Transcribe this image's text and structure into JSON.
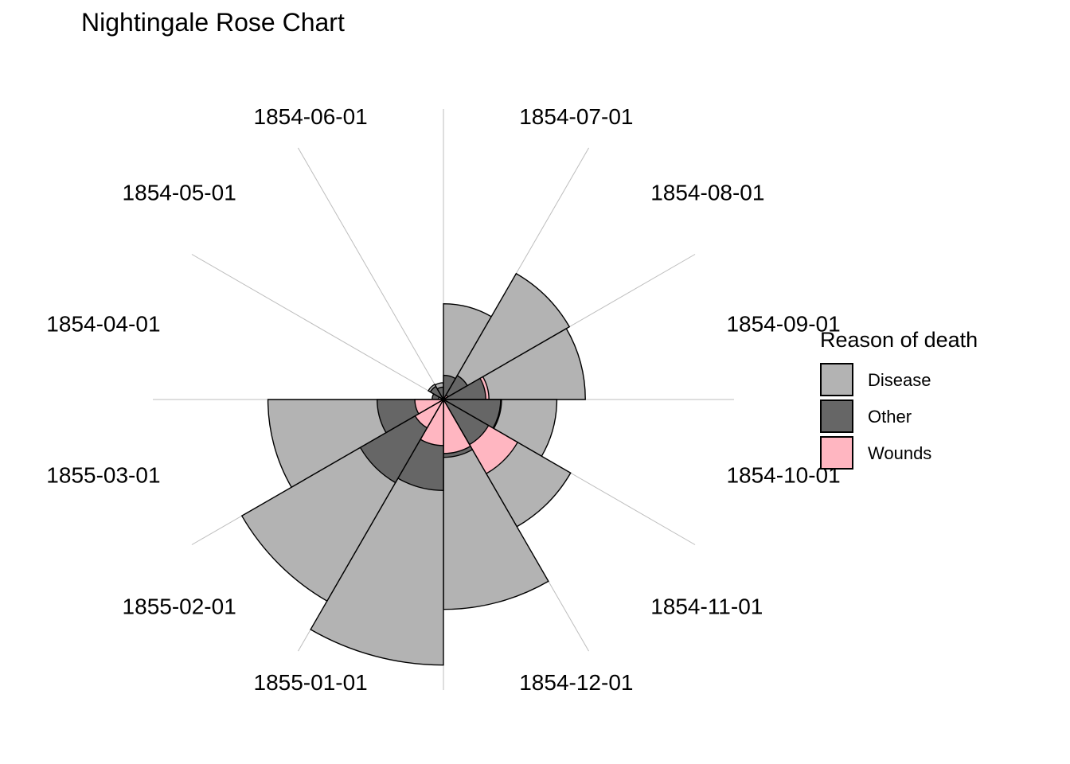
{
  "chart_data": {
    "type": "rose",
    "title": "Nightingale Rose Chart",
    "legend": {
      "title": "Reason of death",
      "placement": "right",
      "items": [
        {
          "name": "Disease",
          "color": "#b3b3b3"
        },
        {
          "name": "Other",
          "color": "#666666"
        },
        {
          "name": "Wounds",
          "color": "#ffb6c1"
        }
      ]
    },
    "categories": [
      "1854-04-01",
      "1854-05-01",
      "1854-06-01",
      "1854-07-01",
      "1854-08-01",
      "1854-09-01",
      "1854-10-01",
      "1854-11-01",
      "1854-12-01",
      "1855-01-01",
      "1855-02-01",
      "1855-03-01"
    ],
    "series": [
      {
        "name": "Disease",
        "values": [
          1,
          12,
          11,
          359,
          828,
          788,
          503,
          844,
          1725,
          2761,
          2120,
          1205
        ]
      },
      {
        "name": "Other",
        "values": [
          5,
          9,
          6,
          23,
          30,
          70,
          128,
          106,
          131,
          324,
          361,
          172
        ]
      },
      {
        "name": "Wounds",
        "values": [
          0,
          0,
          0,
          0,
          1,
          81,
          132,
          287,
          114,
          83,
          42,
          32
        ]
      }
    ],
    "grid": true,
    "axes": false
  }
}
